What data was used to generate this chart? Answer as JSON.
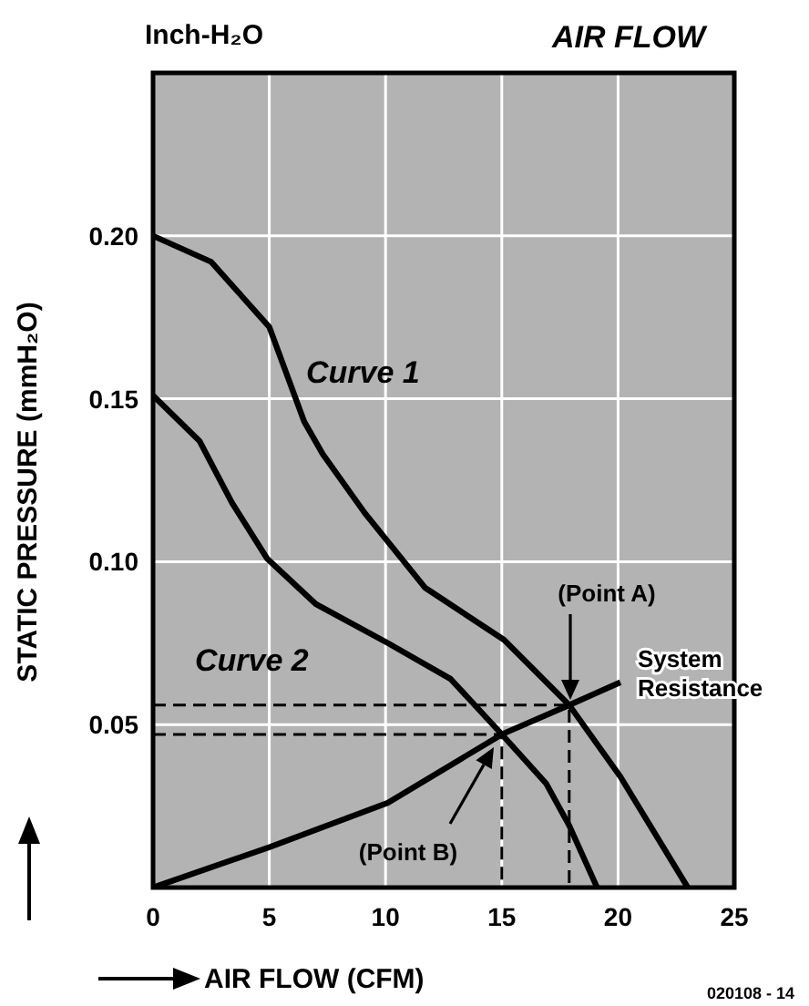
{
  "chart_data": {
    "type": "line",
    "title": "AIR FLOW",
    "xlabel": "AIR FLOW (CFM)",
    "ylabel": "STATIC PRESSURE (mmH₂O)",
    "xlim": [
      0,
      25
    ],
    "xticks": [
      0,
      5,
      10,
      15,
      20,
      25
    ],
    "ylim": [
      0,
      0.25
    ],
    "yticks": [
      0.05,
      {
        "value": 0.1,
        "label": "0.10"
      },
      0.15,
      {
        "value": 0.2,
        "label": "0.20"
      }
    ],
    "grid": true,
    "legend": false,
    "marker": "none",
    "line_style": "solid",
    "series": [
      {
        "name": "Curve 1",
        "color": "#000000",
        "x": [
          0,
          2.5,
          5,
          6.5,
          7.3,
          9.1,
          11.7,
          15.1,
          17.9,
          20.1,
          23
        ],
        "values": [
          0.2,
          0.192,
          0.172,
          0.143,
          0.133,
          0.115,
          0.092,
          0.076,
          0.056,
          0.034,
          0
        ]
      },
      {
        "name": "Curve 2",
        "color": "#000000",
        "x": [
          0,
          2,
          3.4,
          4.9,
          7,
          10.1,
          12.8,
          15,
          16.9,
          17.9,
          19.1
        ],
        "values": [
          0.151,
          0.137,
          0.118,
          0.101,
          0.087,
          0.075,
          0.064,
          0.047,
          0.032,
          0.019,
          0
        ]
      },
      {
        "name": "System Resistance",
        "color": "#000000",
        "x": [
          0,
          5,
          10.1,
          15,
          17.9,
          20.1
        ],
        "values": [
          0,
          0.0124,
          0.026,
          0.047,
          0.056,
          0.063
        ]
      },
      {
        "color": "#000000",
        "line_style": "dashed",
        "x": [
          0,
          17.9,
          17.9
        ],
        "values": [
          0.056,
          0.056,
          0
        ]
      },
      {
        "color": "#000000",
        "line_style": "dashed",
        "x": [
          0,
          15,
          15
        ],
        "values": [
          0.047,
          0.047,
          0
        ]
      }
    ],
    "annotations": [
      "Inch-H₂O",
      "(Point A)",
      "(Point B)",
      "020108 - 14"
    ]
  }
}
